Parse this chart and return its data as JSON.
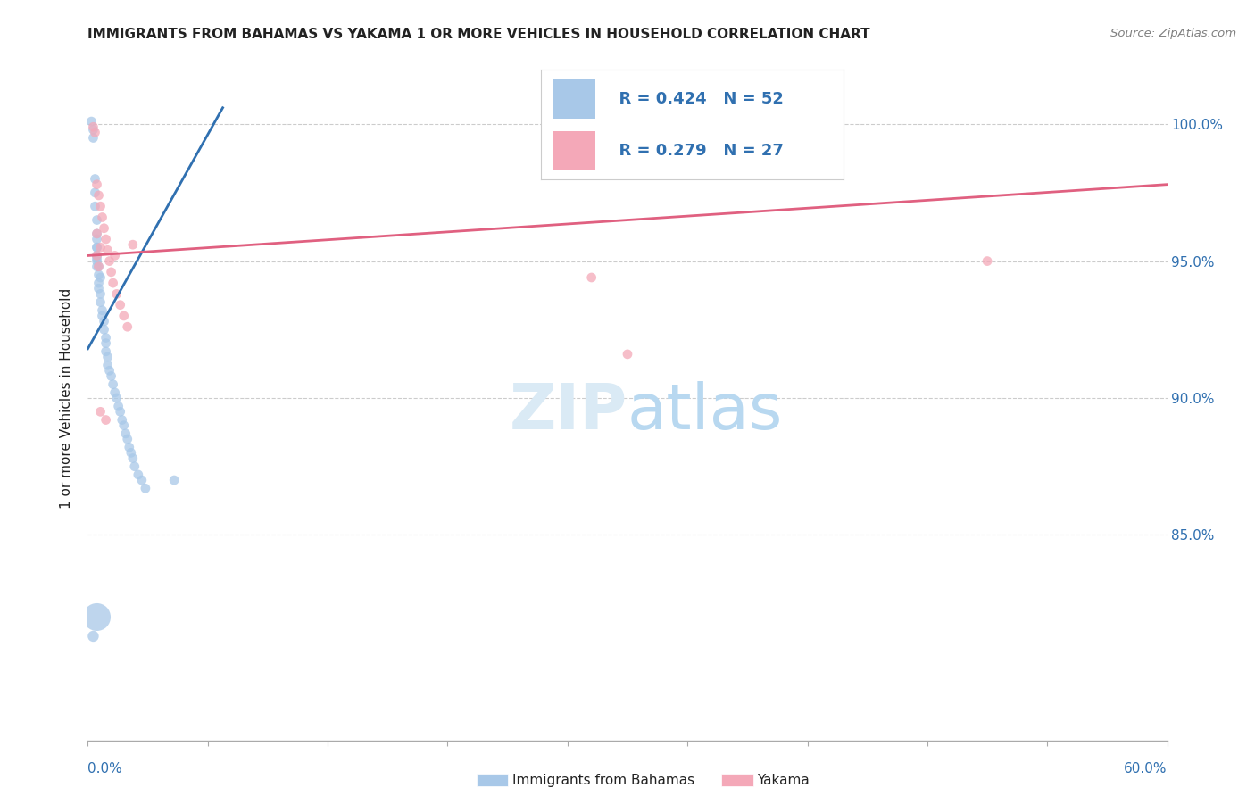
{
  "title": "IMMIGRANTS FROM BAHAMAS VS YAKAMA 1 OR MORE VEHICLES IN HOUSEHOLD CORRELATION CHART",
  "source": "Source: ZipAtlas.com",
  "ylabel": "1 or more Vehicles in Household",
  "xlim": [
    0.0,
    0.6
  ],
  "ylim": [
    0.775,
    1.025
  ],
  "ytick_positions": [
    0.85,
    0.9,
    0.95,
    1.0
  ],
  "ytick_labels": [
    "85.0%",
    "90.0%",
    "95.0%",
    "100.0%"
  ],
  "legend_blue_R": "R = 0.424",
  "legend_blue_N": "N = 52",
  "legend_pink_R": "R = 0.279",
  "legend_pink_N": "N = 27",
  "legend_label_blue": "Immigrants from Bahamas",
  "legend_label_pink": "Yakama",
  "blue_color": "#a8c8e8",
  "pink_color": "#f4a8b8",
  "blue_line_color": "#3070b0",
  "pink_line_color": "#e06080",
  "blue_legend_color": "#a8c8e8",
  "pink_legend_color": "#f4a8b8",
  "text_blue": "#3070b0",
  "text_black": "#222222",
  "grid_color": "#cccccc",
  "axis_color": "#aaaaaa",
  "watermark_color": "#daeaf5",
  "blue_x": [
    0.002,
    0.003,
    0.003,
    0.004,
    0.004,
    0.004,
    0.005,
    0.005,
    0.005,
    0.005,
    0.005,
    0.005,
    0.005,
    0.006,
    0.006,
    0.006,
    0.007,
    0.007,
    0.008,
    0.008,
    0.009,
    0.009,
    0.01,
    0.01,
    0.01,
    0.011,
    0.011,
    0.012,
    0.013,
    0.014,
    0.015,
    0.016,
    0.017,
    0.018,
    0.019,
    0.02,
    0.021,
    0.022,
    0.023,
    0.024,
    0.025,
    0.026,
    0.028,
    0.03,
    0.032,
    0.005,
    0.005,
    0.006,
    0.007,
    0.048,
    0.005,
    0.003
  ],
  "blue_y": [
    1.001,
    0.998,
    0.995,
    0.98,
    0.975,
    0.97,
    0.965,
    0.96,
    0.958,
    0.955,
    0.952,
    0.95,
    0.948,
    0.945,
    0.942,
    0.94,
    0.938,
    0.935,
    0.932,
    0.93,
    0.928,
    0.925,
    0.922,
    0.92,
    0.917,
    0.915,
    0.912,
    0.91,
    0.908,
    0.905,
    0.902,
    0.9,
    0.897,
    0.895,
    0.892,
    0.89,
    0.887,
    0.885,
    0.882,
    0.88,
    0.878,
    0.875,
    0.872,
    0.87,
    0.867,
    0.955,
    0.951,
    0.948,
    0.944,
    0.87,
    0.82,
    0.813
  ],
  "blue_sizes": [
    60,
    60,
    60,
    60,
    60,
    60,
    60,
    60,
    60,
    60,
    60,
    60,
    60,
    60,
    60,
    60,
    60,
    60,
    60,
    60,
    60,
    60,
    60,
    60,
    60,
    60,
    60,
    60,
    60,
    60,
    60,
    60,
    60,
    60,
    60,
    60,
    60,
    60,
    60,
    60,
    60,
    60,
    60,
    60,
    60,
    60,
    60,
    60,
    60,
    60,
    500,
    80
  ],
  "pink_x": [
    0.003,
    0.004,
    0.005,
    0.006,
    0.007,
    0.008,
    0.009,
    0.01,
    0.011,
    0.012,
    0.013,
    0.014,
    0.016,
    0.018,
    0.02,
    0.022,
    0.025,
    0.005,
    0.006,
    0.28,
    0.3,
    0.5,
    0.005,
    0.007,
    0.01,
    0.015,
    0.007
  ],
  "pink_y": [
    0.999,
    0.997,
    0.978,
    0.974,
    0.97,
    0.966,
    0.962,
    0.958,
    0.954,
    0.95,
    0.946,
    0.942,
    0.938,
    0.934,
    0.93,
    0.926,
    0.956,
    0.952,
    0.948,
    0.944,
    0.916,
    0.95,
    0.96,
    0.955,
    0.892,
    0.952,
    0.895
  ],
  "pink_sizes": [
    60,
    60,
    60,
    60,
    60,
    60,
    60,
    60,
    60,
    60,
    60,
    60,
    60,
    60,
    60,
    60,
    60,
    60,
    60,
    60,
    60,
    60,
    60,
    60,
    60,
    60,
    60
  ],
  "blue_line_x": [
    0.0,
    0.075
  ],
  "blue_line_y": [
    0.918,
    1.006
  ],
  "pink_line_x": [
    0.0,
    0.6
  ],
  "pink_line_y": [
    0.952,
    0.978
  ]
}
